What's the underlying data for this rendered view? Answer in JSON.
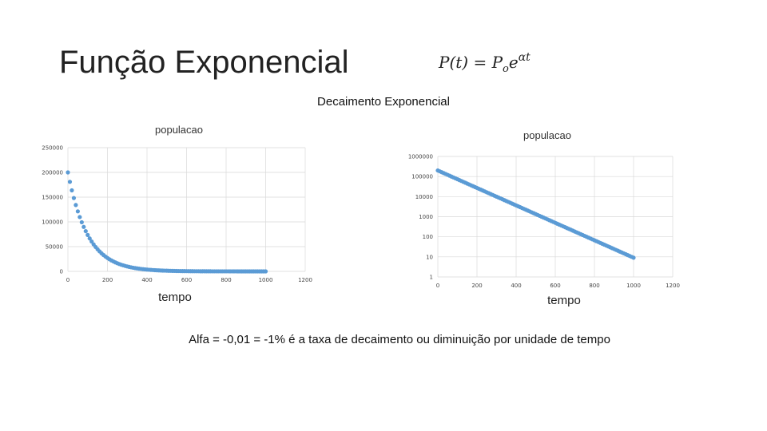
{
  "page": {
    "title": "Função Exponencial",
    "formula": {
      "lhs": "P(t) = ",
      "base": "P",
      "sub": "o",
      "e": "e",
      "exponent": "αt"
    },
    "subtitle": "Decaimento Exponencial",
    "caption": "Alfa = -0,01 = -1% é a taxa de decaimento ou diminuição por unidade de tempo"
  },
  "chart_data": [
    {
      "type": "scatter",
      "title": "populacao",
      "xlabel": "tempo",
      "ylabel": "",
      "xlim": [
        0,
        1200
      ],
      "ylim": [
        0,
        250000
      ],
      "xticks": [
        0,
        200,
        400,
        600,
        800,
        1000,
        1200
      ],
      "yticks": [
        0,
        50000,
        100000,
        150000,
        200000,
        250000
      ],
      "x_tick_labels": [
        "0",
        "200",
        "400",
        "600",
        "800",
        "1000",
        "1200"
      ],
      "y_tick_labels": [
        "0",
        "50000",
        "100000",
        "150000",
        "200000",
        "250000"
      ],
      "grid": true,
      "yscale": "linear",
      "series": [
        {
          "P0": 200000,
          "alpha": -0.01,
          "t_start": 0,
          "t_end": 1000,
          "t_step": 10,
          "color": "#5b9bd5"
        }
      ]
    },
    {
      "type": "scatter",
      "title": "populacao",
      "xlabel": "tempo",
      "ylabel": "",
      "xlim": [
        0,
        1200
      ],
      "ylim": [
        1,
        1000000
      ],
      "xticks": [
        0,
        200,
        400,
        600,
        800,
        1000,
        1200
      ],
      "yticks": [
        1,
        10,
        100,
        1000,
        10000,
        100000,
        1000000
      ],
      "x_tick_labels": [
        "0",
        "200",
        "400",
        "600",
        "800",
        "1000",
        "1200"
      ],
      "y_tick_labels": [
        "1",
        "10",
        "100",
        "1000",
        "10000",
        "100000",
        "1000000"
      ],
      "grid": true,
      "yscale": "log",
      "series": [
        {
          "P0": 200000,
          "alpha": -0.01,
          "t_start": 0,
          "t_end": 1000,
          "t_step": 10,
          "color": "#5b9bd5"
        }
      ]
    }
  ]
}
